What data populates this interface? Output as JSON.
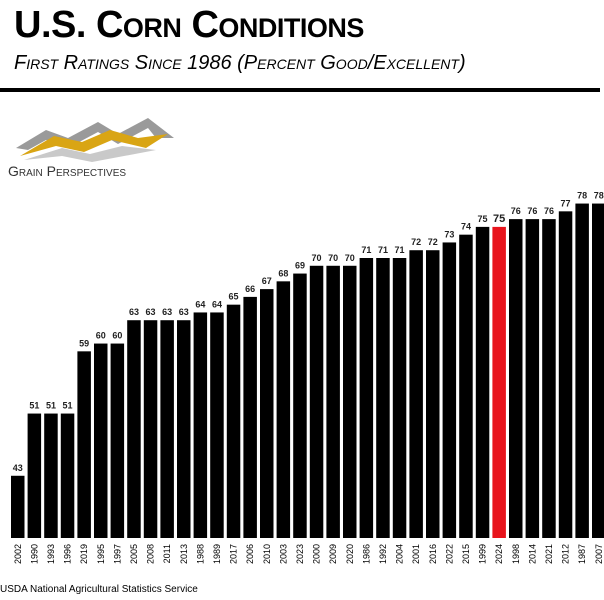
{
  "header": {
    "title": "U.S. Corn Conditions",
    "subtitle": "First Ratings Since 1986 (Percent Good/Excellent)"
  },
  "logo": {
    "text": "Grain Perspectives",
    "icon": "mountain-logo-icon"
  },
  "source": "USDA National Agricultural Statistics Service",
  "chart_data": {
    "type": "bar",
    "title": "U.S. Corn Conditions",
    "subtitle": "First Ratings Since 1986 (Percent Good/Excellent)",
    "categories": [
      "2002",
      "1990",
      "1993",
      "1996",
      "2019",
      "1995",
      "1997",
      "2005",
      "2008",
      "2011",
      "2013",
      "1988",
      "1989",
      "2017",
      "2006",
      "2010",
      "2003",
      "2023",
      "2000",
      "2009",
      "2020",
      "1986",
      "1992",
      "2004",
      "2001",
      "2016",
      "2022",
      "2015",
      "1999",
      "2024",
      "1998",
      "2014",
      "2021",
      "2012",
      "1987",
      "2007"
    ],
    "values": [
      43,
      51,
      51,
      51,
      59,
      60,
      60,
      63,
      63,
      63,
      63,
      64,
      64,
      65,
      66,
      67,
      68,
      69,
      70,
      70,
      70,
      71,
      71,
      71,
      72,
      72,
      73,
      74,
      75,
      75,
      76,
      76,
      76,
      77,
      78,
      78
    ],
    "highlight": "2024",
    "colors": {
      "bar": "#000000",
      "highlight": "#e8141c"
    },
    "ylim": [
      35,
      80
    ],
    "grid": false,
    "legend": false
  }
}
